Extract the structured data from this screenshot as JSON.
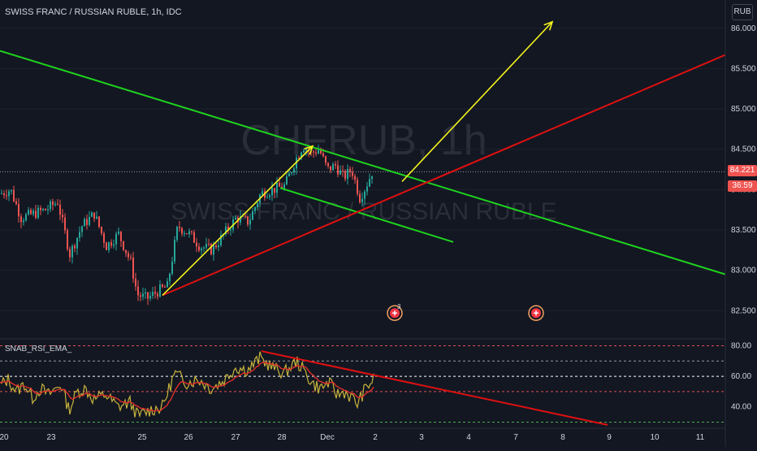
{
  "header": {
    "symbol_title": "SWISS FRANC / RUSSIAN RUBLE, 1h, IDC",
    "currency": "RUB",
    "watermark_ticker": "CHFRUB, 1h",
    "watermark_name": "SWISS FRANC / RUSSIAN RUBLE"
  },
  "price_tags": {
    "last_price": "84.221",
    "countdown": "36:59"
  },
  "colors": {
    "background": "#131722",
    "up_candle": "#26a69a",
    "down_candle": "#ef5350",
    "trend_green": "#1ed31e",
    "trend_red": "#e01010",
    "arrow_yellow": "#f3f31d",
    "rsi_line": "#c8b43c",
    "rsi_ema": "#e0302a"
  },
  "chart_data": [
    {
      "type": "candlestick",
      "title": "SWISS FRANC / RUSSIAN RUBLE, 1h, IDC",
      "y_ticks": [
        82.5,
        83.0,
        83.5,
        84.0,
        84.5,
        85.0,
        85.5,
        86.0
      ],
      "y_tick_labels": [
        "82.500",
        "83.000",
        "83.500",
        "84.000",
        "84.500",
        "85.000",
        "85.500",
        "86.000"
      ],
      "ylim": [
        82.15,
        86.35
      ],
      "x_tick_labels": [
        "20",
        "23",
        "25",
        "26",
        "27",
        "28",
        "Dec",
        "2",
        "3",
        "4",
        "7",
        "8",
        "9",
        "10",
        "11"
      ],
      "price_path": [
        [
          0,
          83.95
        ],
        [
          12,
          84.0
        ],
        [
          25,
          83.65
        ],
        [
          40,
          83.7
        ],
        [
          55,
          83.75
        ],
        [
          70,
          83.85
        ],
        [
          85,
          83.2
        ],
        [
          100,
          83.55
        ],
        [
          115,
          83.7
        ],
        [
          130,
          83.3
        ],
        [
          145,
          83.45
        ],
        [
          160,
          83.1
        ],
        [
          168,
          82.7
        ],
        [
          180,
          82.65
        ],
        [
          195,
          82.75
        ],
        [
          205,
          82.8
        ],
        [
          218,
          83.55
        ],
        [
          232,
          83.45
        ],
        [
          245,
          83.3
        ],
        [
          260,
          83.25
        ],
        [
          275,
          83.45
        ],
        [
          290,
          83.65
        ],
        [
          305,
          83.6
        ],
        [
          320,
          83.95
        ],
        [
          335,
          84.0
        ],
        [
          350,
          84.05
        ],
        [
          362,
          84.35
        ],
        [
          372,
          84.55
        ],
        [
          382,
          84.45
        ],
        [
          392,
          84.5
        ],
        [
          402,
          84.25
        ],
        [
          412,
          84.3
        ],
        [
          422,
          84.15
        ],
        [
          432,
          84.25
        ],
        [
          442,
          83.9
        ],
        [
          450,
          84.05
        ],
        [
          457,
          84.22
        ]
      ],
      "last_price": 84.221,
      "overlays": [
        {
          "kind": "trendline",
          "color": "green",
          "from": [
            0,
            85.72
          ],
          "to": [
            893,
            82.95
          ]
        },
        {
          "kind": "trendline",
          "color": "green",
          "from": [
            345,
            84.02
          ],
          "to": [
            558,
            83.35
          ]
        },
        {
          "kind": "trendline",
          "color": "red",
          "from": [
            200,
            82.69
          ],
          "to": [
            893,
            85.67
          ]
        },
        {
          "kind": "arrow",
          "color": "yellow",
          "from": [
            200,
            82.69
          ],
          "to": [
            385,
            84.54
          ]
        },
        {
          "kind": "arrow",
          "color": "yellow",
          "from": [
            495,
            84.1
          ],
          "to": [
            680,
            86.08
          ]
        }
      ],
      "event_markers": [
        {
          "x": 486,
          "y": 82.47,
          "badge": "3"
        },
        {
          "x": 660,
          "y": 82.47,
          "badge": ""
        }
      ]
    },
    {
      "type": "line",
      "title": "SNAB_RSI_EMA_",
      "y_ticks": [
        40,
        60,
        80
      ],
      "y_tick_labels": [
        "40.00",
        "60.00",
        "80.00"
      ],
      "ylim": [
        26,
        84
      ],
      "reference_levels": [
        {
          "value": 80,
          "color": "#e05050"
        },
        {
          "value": 70,
          "color": "#9598a1"
        },
        {
          "value": 60,
          "color": "#ffffff"
        },
        {
          "value": 50,
          "color": "#e05050"
        },
        {
          "value": 30,
          "color": "#4caf50"
        }
      ],
      "rsi_path": [
        [
          0,
          54
        ],
        [
          10,
          58
        ],
        [
          20,
          50
        ],
        [
          30,
          55
        ],
        [
          40,
          46
        ],
        [
          50,
          52
        ],
        [
          60,
          48
        ],
        [
          75,
          55
        ],
        [
          85,
          38
        ],
        [
          95,
          50
        ],
        [
          105,
          52
        ],
        [
          115,
          45
        ],
        [
          130,
          48
        ],
        [
          145,
          40
        ],
        [
          160,
          43
        ],
        [
          170,
          34
        ],
        [
          185,
          38
        ],
        [
          200,
          40
        ],
        [
          215,
          62
        ],
        [
          230,
          56
        ],
        [
          245,
          58
        ],
        [
          260,
          52
        ],
        [
          275,
          57
        ],
        [
          290,
          66
        ],
        [
          305,
          64
        ],
        [
          320,
          72
        ],
        [
          335,
          66
        ],
        [
          350,
          62
        ],
        [
          365,
          70
        ],
        [
          375,
          63
        ],
        [
          385,
          55
        ],
        [
          395,
          52
        ],
        [
          405,
          56
        ],
        [
          415,
          48
        ],
        [
          425,
          50
        ],
        [
          440,
          42
        ],
        [
          450,
          52
        ],
        [
          460,
          58
        ]
      ],
      "overlays": [
        {
          "kind": "trendline",
          "color": "red",
          "from": [
            322,
            76.5
          ],
          "to": [
            748,
            28.2
          ]
        }
      ]
    }
  ]
}
